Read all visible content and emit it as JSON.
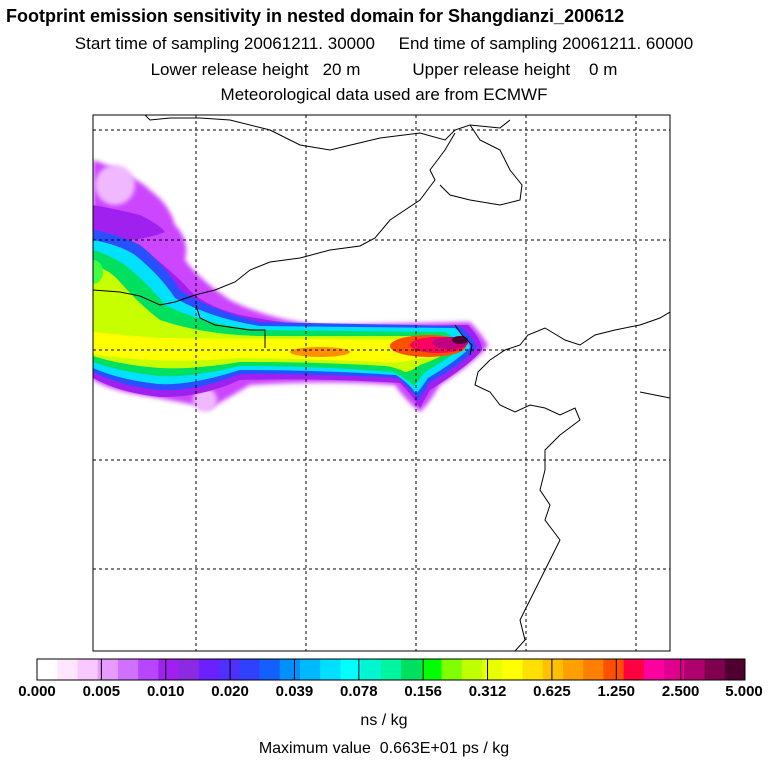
{
  "header": {
    "title": "Footprint emission sensitivity in nested domain for Shangdianzi_200612",
    "sampling_line": "Start time of sampling 20061211. 30000     End time of sampling 20061211. 60000",
    "release_line": "Lower release height   20 m           Upper release height    0 m",
    "met_line": "Meteorological data used are from ECMWF"
  },
  "legend": {
    "tick_labels": [
      "0.000",
      "0.005",
      "0.010",
      "0.020",
      "0.039",
      "0.078",
      "0.156",
      "0.312",
      "0.625",
      "1.250",
      "2.500",
      "5.000"
    ],
    "colors": [
      "#ffffff",
      "#ffe6ff",
      "#f8c8ff",
      "#e69cff",
      "#d070ff",
      "#b845ff",
      "#a020f0",
      "#8a2be2",
      "#6a20ff",
      "#5030ff",
      "#3040ff",
      "#1460ff",
      "#0090ff",
      "#00b8ff",
      "#00dfff",
      "#00ffff",
      "#00f5d0",
      "#00f5a0",
      "#00e060",
      "#00ff00",
      "#80ff00",
      "#c0ff00",
      "#e8ff00",
      "#ffff00",
      "#ffe000",
      "#ffc000",
      "#ffa000",
      "#ff8000",
      "#ff5000",
      "#ff0040",
      "#ff00a0",
      "#e00090",
      "#b00070",
      "#800050",
      "#500030"
    ],
    "units": "ns / kg"
  },
  "footer": {
    "max_value": "Maximum value  0.663E+01 ps / kg"
  }
}
